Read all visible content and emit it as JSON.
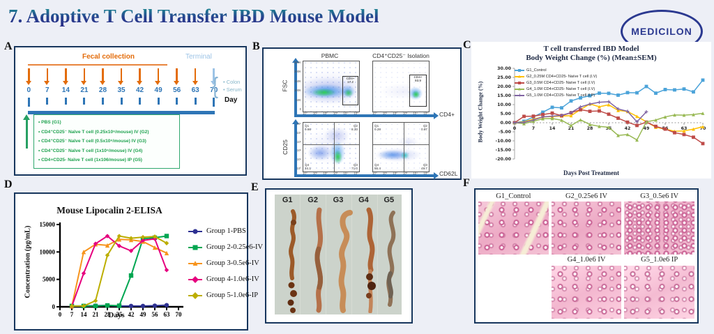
{
  "header": {
    "title": "7. Adoptive T Cell Transfer IBD Mouse Model",
    "logo_text": "MEDICILON",
    "logo_color": "#2b3990"
  },
  "panels": {
    "a": {
      "label": "A",
      "fecal_label": "Fecal collection",
      "terminal_label": "Terminal",
      "days": [
        "0",
        "7",
        "14",
        "21",
        "28",
        "35",
        "42",
        "49",
        "56",
        "63",
        "70"
      ],
      "day_axis_label": "Day",
      "terminal_samples": [
        "Colon",
        "Serum"
      ],
      "groups": [
        "PBS (G1)",
        "CD4⁺CD25⁻ Naïve T cell  (0.25x10⁶/mouse) IV (G2)",
        "CD4⁺CD25⁻ Naïve T cell  (0.5x10⁶/mouse) IV (G3)",
        "CD4⁺CD25⁻ Naïve T cell  (1x10⁶/mouse) IV (G4)",
        "CD4+CD25- Naïve T cell  (1x106/mouse) IP (G5)"
      ]
    },
    "b": {
      "label": "B",
      "top": {
        "titles": [
          "PBMC",
          "CD4⁺CD25⁻ Isolation"
        ],
        "ylabel": "FSC",
        "xlabel": "CD4+",
        "yticks": [
          "250K",
          "200K",
          "150K",
          "100K",
          "50K",
          "0"
        ],
        "xticks": [
          "10⁰",
          "10¹",
          "10²",
          "10³",
          "10⁴",
          "10⁵"
        ],
        "gates": [
          "CD4+\n17.2",
          "CD4+\n93.9"
        ]
      },
      "bottom": {
        "ylabel": "CD25",
        "xlabel": "CD62L",
        "yticks": [
          "10⁵",
          "10⁴",
          "10³",
          "10²",
          "10¹",
          "10⁰"
        ],
        "xticks": [
          "10⁰",
          "10¹",
          "10²",
          "10³",
          "10⁴",
          "10⁵"
        ],
        "quads": [
          {
            "tl": "Q1\n0.66",
            "tr": "Q2\n8.33",
            "bl": "Q4\n24.1",
            "br": "Q3\n71.0"
          },
          {
            "tl": "Q1\n0.28",
            "tr": "Q2\n0.87",
            "bl": "Q4\n55.4",
            "br": "Q3\n49.7"
          }
        ]
      }
    },
    "c": {
      "label": "C"
    },
    "d": {
      "label": "D"
    },
    "e": {
      "label": "E",
      "column_labels": [
        "G1",
        "G2",
        "G3",
        "G4",
        "G5"
      ]
    },
    "f": {
      "label": "F",
      "tiles": [
        "G1_Control",
        "G2_0.25e6 IV",
        "G3_0.5e6 IV",
        "G4_1.0e6 IV",
        "G5_1.0e6 IP"
      ]
    }
  },
  "chart_data": [
    {
      "type": "line",
      "title": "T cell transferred IBD Model",
      "subtitle": "Body Weight Change (%) (Mean±SEM)",
      "xlabel": "Days Post Treatment",
      "ylabel": "Body Weight Change (%)",
      "xlim": [
        0,
        70
      ],
      "ylim": [
        -20,
        30
      ],
      "xticks": [
        0,
        7,
        14,
        21,
        28,
        35,
        42,
        49,
        56,
        63,
        70
      ],
      "yticks": [
        30,
        25,
        20,
        15,
        10,
        5,
        0,
        -5,
        -10,
        -15,
        -20
      ],
      "grid": false,
      "legend_position": "top-left-inside",
      "x": [
        0,
        3.5,
        7,
        10.5,
        14,
        17.5,
        21,
        24.5,
        28,
        31.5,
        35,
        38.5,
        42,
        45.5,
        49,
        52.5,
        56,
        59.5,
        63,
        66.5,
        70
      ],
      "series": [
        {
          "name": "G1_Control",
          "color": "#4ba3d9",
          "marker": "square",
          "values": [
            0,
            0.8,
            3.2,
            5.8,
            8.5,
            8.2,
            12,
            13.7,
            14.9,
            16.3,
            16.2,
            15.2,
            16.6,
            16.5,
            20,
            16.3,
            18.3,
            18.1,
            18.6,
            17,
            23.5
          ]
        },
        {
          "name": "G2_0.25M CD4+CD25- Naïve T cell (I.V)",
          "color": "#ffc000",
          "marker": "triangle",
          "values": [
            0,
            0.5,
            2,
            3.2,
            3.4,
            3.7,
            3.9,
            7.2,
            10.4,
            8.8,
            9.9,
            6.8,
            6.2,
            3.5,
            0.5,
            -2.5,
            -3.5,
            -4.7,
            -4.5,
            -3.5,
            -2.2
          ]
        },
        {
          "name": "G3_0.5M CD4+CD25- Naïve T cell (I.V)",
          "color": "#be4b48",
          "marker": "square",
          "values": [
            0,
            3.5,
            3.6,
            4.5,
            5.3,
            3.9,
            5.5,
            7.2,
            6.3,
            6.5,
            4.7,
            2.5,
            0.3,
            -1.5,
            0.3,
            -2,
            -3.5,
            -5.5,
            -6.5,
            -8,
            -11.5
          ]
        },
        {
          "name": "G4_1.0M CD4+CD25- Naïve T cell (I.V)",
          "color": "#98b954",
          "marker": "triangle",
          "values": [
            0,
            -0.5,
            0.8,
            2.2,
            2.3,
            1.4,
            -1.6,
            1.6,
            -1,
            -2,
            -2.5,
            -7,
            -6.5,
            -9.5,
            0.5,
            1.5,
            3.2,
            4.3,
            4.2,
            4.5,
            5.2
          ]
        },
        {
          "name": "G5_1.0M CD4+CD25- Naïve T cell (I.P)",
          "color": "#8064a2",
          "marker": "cross",
          "values": [
            0,
            0.2,
            1.5,
            3.2,
            3.6,
            4.1,
            5.6,
            8.7,
            10.3,
            11.3,
            11.6,
            7.6,
            6.3,
            0.5,
            6,
            null,
            null,
            null,
            null,
            null,
            null
          ]
        }
      ]
    },
    {
      "type": "line",
      "title": "Mouse Lipocalin 2-ELISA",
      "xlabel": "Days",
      "ylabel": "Concentration (pg/mL)",
      "xlim": [
        0,
        70
      ],
      "ylim": [
        0,
        15000
      ],
      "xticks": [
        0,
        7,
        14,
        21,
        28,
        35,
        42,
        49,
        56,
        63,
        70
      ],
      "yticks": [
        0,
        5000,
        10000,
        15000
      ],
      "grid": false,
      "legend_position": "right",
      "x": [
        7,
        14,
        21,
        28,
        35,
        42,
        49,
        56,
        63
      ],
      "series": [
        {
          "name": "Group 1-PBS",
          "color": "#2e3192",
          "marker": "circle",
          "values": [
            150,
            150,
            200,
            250,
            150,
            150,
            150,
            200,
            300
          ]
        },
        {
          "name": "Group 2-0.25e6-IV",
          "color": "#00a651",
          "marker": "square",
          "values": [
            150,
            150,
            150,
            250,
            200,
            5700,
            12400,
            12600,
            12900
          ]
        },
        {
          "name": "Group 3-0.5e6-IV",
          "color": "#f7941d",
          "marker": "triangle",
          "values": [
            100,
            10000,
            11400,
            11200,
            12300,
            12200,
            11900,
            10800,
            9800
          ]
        },
        {
          "name": "Group 4-1.0e6-IV",
          "color": "#e6007e",
          "marker": "diamond",
          "values": [
            100,
            6100,
            11500,
            12900,
            11100,
            10200,
            12100,
            12400,
            6700
          ]
        },
        {
          "name": "Group 5-1.0e6-IP",
          "color": "#bcae00",
          "marker": "diamond",
          "values": [
            150,
            150,
            1100,
            9400,
            12900,
            12500,
            12700,
            12800,
            11600
          ]
        }
      ]
    }
  ]
}
